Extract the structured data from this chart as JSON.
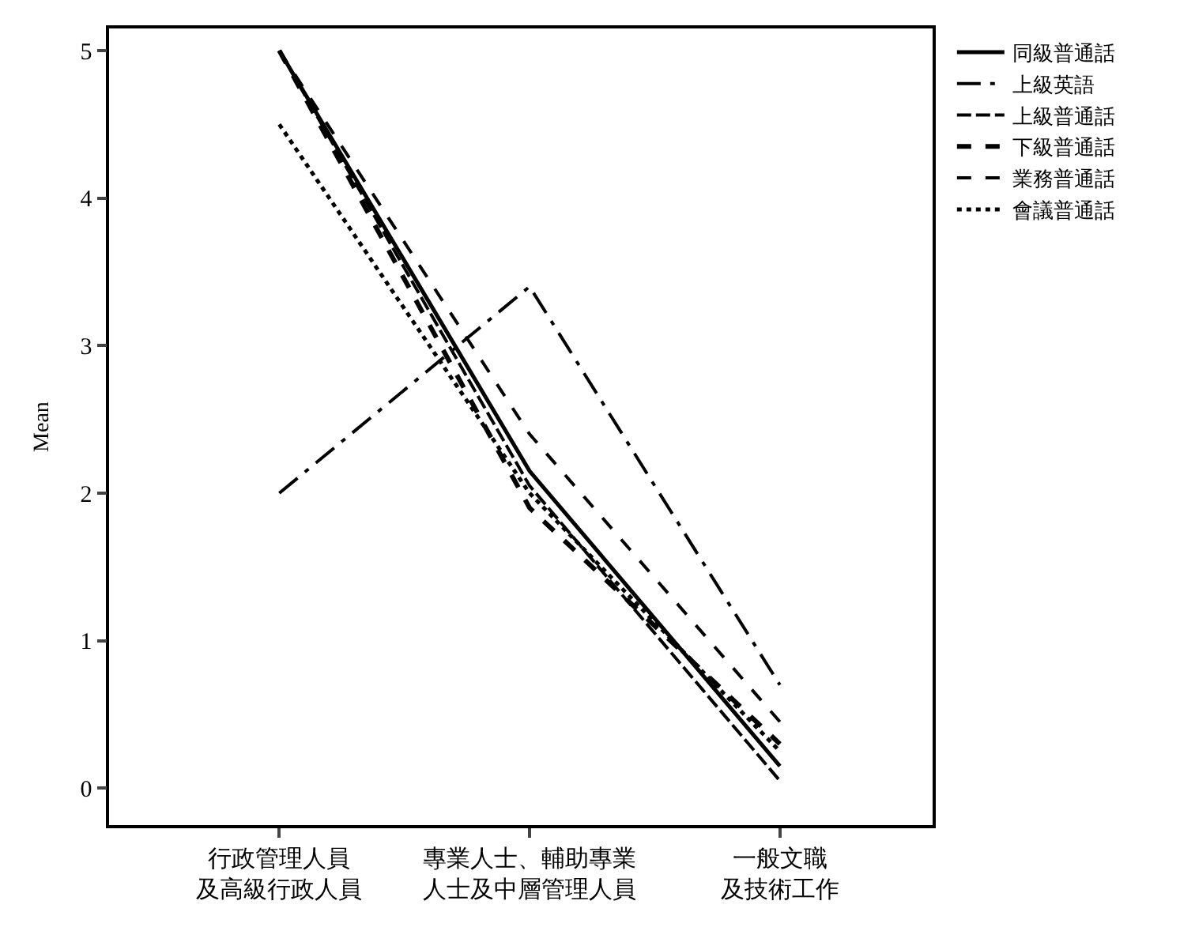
{
  "chart_data": {
    "type": "line",
    "ylabel": "Mean",
    "categories": [
      "行政管理人員及高級行政人員",
      "專業人士、輔助專業人士及中層管理人員",
      "一般文職及技術工作"
    ],
    "series": [
      {
        "name": "同級普通話",
        "color": "#000000",
        "line_style": "solid",
        "values": [
          5.0,
          2.15,
          0.15
        ]
      },
      {
        "name": "上級英語",
        "color": "#000000",
        "line_style": "dashdot",
        "values": [
          2.0,
          3.4,
          0.7
        ]
      },
      {
        "name": "上級普通話",
        "color": "#000000",
        "line_style": "longdash",
        "values": [
          5.0,
          2.05,
          0.05
        ]
      },
      {
        "name": "下級普通話",
        "color": "#000000",
        "line_style": "dashed",
        "values": [
          5.0,
          1.9,
          0.3
        ]
      },
      {
        "name": "業務普通話",
        "color": "#000000",
        "line_style": "dotdash",
        "values": [
          5.0,
          2.4,
          0.45
        ]
      },
      {
        "name": "會議普通話",
        "color": "#000000",
        "line_style": "dotted",
        "values": [
          4.5,
          2.0,
          0.25
        ]
      }
    ],
    "ylim": [
      -0.25,
      5.15
    ],
    "yticks": [
      0,
      1,
      2,
      3,
      4,
      5
    ],
    "grid": false,
    "legend": "top right",
    "marker": "none"
  }
}
